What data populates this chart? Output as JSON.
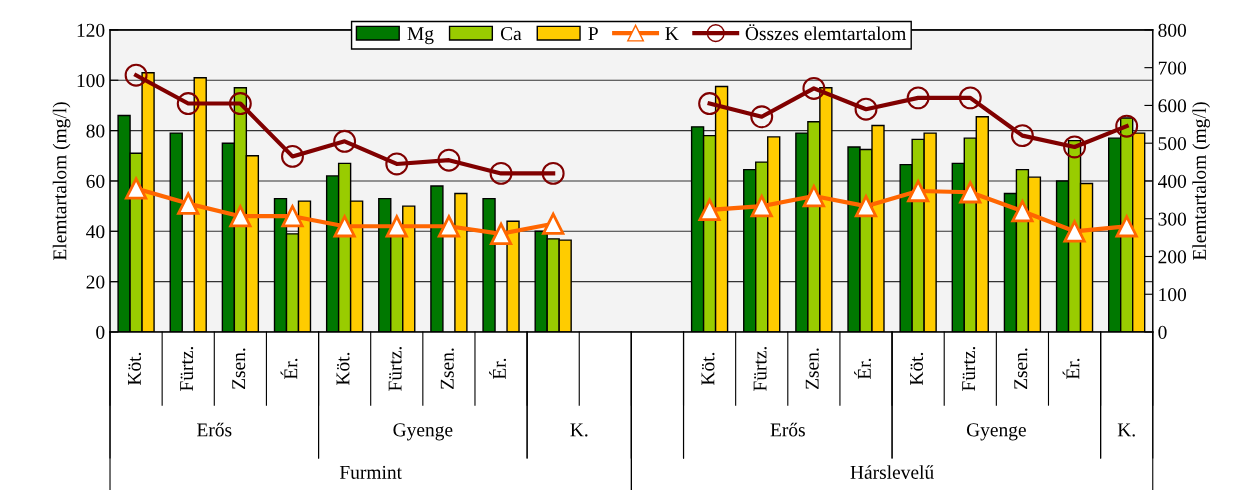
{
  "chart_data": {
    "type": "bar",
    "ylabel": "Elemtartalom (mg/l)",
    "y2label": "Elemtartalom (mg/l)",
    "categories": [
      "Köt.",
      "Fürtz.",
      "Zsen.",
      "Ér.",
      "Köt.",
      "Fürtz.",
      "Zsen.",
      "Ér.",
      null,
      null,
      null,
      "Köt.",
      "Fürtz.",
      "Zsen.",
      "Ér.",
      "Köt.",
      "Fürtz.",
      "Zsen.",
      "Ér.",
      null
    ],
    "annotations": [
      "Erős",
      "Gyenge",
      "K.",
      "Erős",
      "Gyenge",
      "K.",
      "Furmint",
      "Hárslevelű"
    ],
    "series": [
      {
        "name": "Mg",
        "color": "#007800",
        "values": [
          86,
          79,
          75,
          53,
          62,
          53,
          58,
          53,
          40,
          null,
          null,
          81.5,
          64.5,
          79,
          73.5,
          66.5,
          67,
          55,
          60,
          77
        ]
      },
      {
        "name": "Ca",
        "color": "#99cc00",
        "values": [
          71,
          null,
          97,
          39,
          67,
          38,
          null,
          null,
          37,
          null,
          null,
          78,
          67.5,
          83.5,
          72.5,
          76.5,
          77,
          64.5,
          76,
          85
        ]
      },
      {
        "name": "P",
        "color": "#ffcc00",
        "values": [
          103,
          101,
          70,
          52,
          52,
          50,
          55,
          44,
          36.5,
          null,
          null,
          97.5,
          77.5,
          97,
          82,
          79,
          85.5,
          61.5,
          59,
          79
        ]
      },
      {
        "name": "K",
        "type": "line",
        "color": "#ff6600",
        "marker": "triangle",
        "values": [
          57,
          51,
          46,
          46,
          42,
          42,
          42,
          39,
          43,
          null,
          null,
          48.5,
          50,
          54,
          50,
          56,
          55.5,
          48,
          40,
          42
        ]
      },
      {
        "name": "Összes elemtartalom",
        "type": "line",
        "axis": "y2",
        "color": "#800000",
        "marker": "circle",
        "values": [
          680,
          605,
          605,
          465,
          505,
          445,
          455,
          420,
          420,
          null,
          null,
          605,
          570,
          645,
          590,
          620,
          620,
          520,
          490,
          545
        ]
      }
    ],
    "ylim": [
      0,
      120
    ],
    "yticks": [
      0,
      20,
      40,
      60,
      80,
      100,
      120
    ],
    "y2lim": [
      0,
      800
    ],
    "y2ticks": [
      0,
      100,
      200,
      300,
      400,
      500,
      600,
      700,
      800
    ],
    "grid": "y",
    "legend": "top"
  }
}
